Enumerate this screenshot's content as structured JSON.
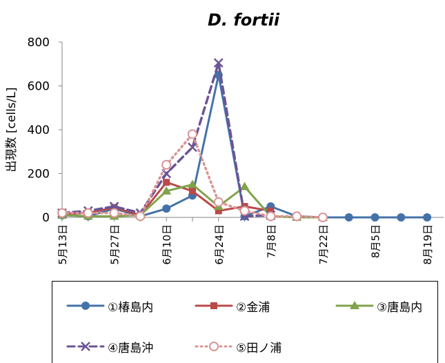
{
  "chart_data": {
    "type": "line",
    "title": "D. fortii",
    "xlabel": "",
    "ylabel": "出現数 [cells/L]",
    "ylim": [
      0,
      800
    ],
    "yticks": [
      0,
      200,
      400,
      600,
      800
    ],
    "grid": false,
    "legend_position": "bottom",
    "x": [
      "5月13日",
      "5月20日",
      "5月27日",
      "6月3日",
      "6月10日",
      "6月17日",
      "6月24日",
      "7月1日",
      "7月8日",
      "7月15日",
      "7月22日",
      "7月29日",
      "8月5日",
      "8月12日",
      "8月19日"
    ],
    "xtick_labels": [
      "5月13日",
      "5月27日",
      "6月10日",
      "6月24日",
      "7月8日",
      "7月22日",
      "8月5日",
      "8月19日"
    ],
    "series": [
      {
        "name": "①椿島内",
        "color": "#4472A8",
        "style": "solid",
        "marker": "circle",
        "values": [
          10,
          5,
          40,
          5,
          40,
          100,
          650,
          5,
          50,
          5,
          0,
          0,
          0,
          0,
          0
        ]
      },
      {
        "name": "②金浦",
        "color": "#B94A48",
        "style": "solid",
        "marker": "square",
        "values": [
          15,
          20,
          45,
          10,
          160,
          120,
          30,
          50,
          30,
          null,
          null,
          null,
          null,
          null,
          null
        ]
      },
      {
        "name": "③唐島内",
        "color": "#80A34A",
        "style": "solid",
        "marker": "triangle",
        "values": [
          10,
          5,
          5,
          10,
          120,
          150,
          50,
          140,
          5,
          0,
          0,
          null,
          null,
          null,
          null
        ]
      },
      {
        "name": "④唐島沖",
        "color": "#6B5496",
        "style": "dashed",
        "marker": "x",
        "values": [
          20,
          30,
          50,
          20,
          200,
          320,
          705,
          5,
          10,
          null,
          null,
          null,
          null,
          null,
          null
        ]
      },
      {
        "name": "⑤田ノ浦",
        "color": "#DA9494",
        "style": "dotted",
        "marker": "open-circle",
        "values": [
          20,
          20,
          20,
          5,
          240,
          380,
          70,
          30,
          5,
          5,
          0,
          null,
          null,
          null,
          null
        ]
      }
    ]
  }
}
